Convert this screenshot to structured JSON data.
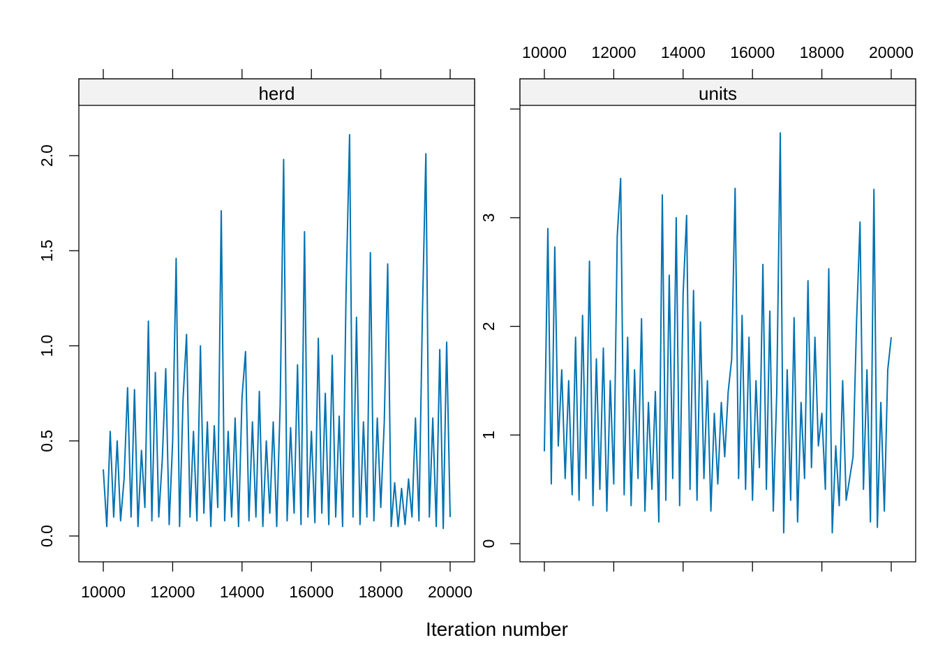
{
  "chart_data": [
    {
      "type": "line",
      "panel": "herd",
      "xlabel": "Iteration number",
      "xlim": [
        10000,
        20000
      ],
      "ylim": [
        0,
        2.25
      ],
      "x_ticks": [
        "10000",
        "12000",
        "14000",
        "16000",
        "18000",
        "20000"
      ],
      "y_ticks": [
        "0.0",
        "0.5",
        "1.0",
        "1.5",
        "2.0"
      ],
      "color": "#0072B2",
      "grid": false,
      "values": [
        0.35,
        0.05,
        0.55,
        0.1,
        0.5,
        0.08,
        0.3,
        0.78,
        0.1,
        0.77,
        0.05,
        0.45,
        0.15,
        1.13,
        0.08,
        0.86,
        0.1,
        0.4,
        0.88,
        0.06,
        0.5,
        1.46,
        0.05,
        0.72,
        1.06,
        0.1,
        0.55,
        0.08,
        1.0,
        0.12,
        0.6,
        0.05,
        0.58,
        0.15,
        1.71,
        0.08,
        0.55,
        0.1,
        0.62,
        0.05,
        0.73,
        0.97,
        0.08,
        0.6,
        0.1,
        0.76,
        0.05,
        0.5,
        0.12,
        0.6,
        0.05,
        0.7,
        1.98,
        0.08,
        0.57,
        0.12,
        0.9,
        0.06,
        1.6,
        0.1,
        0.55,
        0.07,
        1.04,
        0.12,
        0.75,
        0.06,
        0.95,
        0.1,
        0.63,
        0.05,
        1.29,
        2.11,
        0.1,
        1.15,
        0.06,
        0.6,
        0.1,
        1.49,
        0.08,
        0.62,
        0.15,
        0.6,
        1.43,
        0.05,
        0.28,
        0.05,
        0.25,
        0.06,
        0.3,
        0.1,
        0.62,
        0.08,
        1.16,
        2.01,
        0.1,
        0.62,
        0.05,
        0.98,
        0.04,
        1.02,
        0.1
      ]
    },
    {
      "type": "line",
      "panel": "units",
      "xlabel": "Iteration number",
      "xlim": [
        10000,
        20000
      ],
      "ylim": [
        0,
        4
      ],
      "x_ticks": [
        "10000",
        "12000",
        "14000",
        "16000",
        "18000",
        "20000"
      ],
      "y_ticks": [
        "0",
        "1",
        "2",
        "3"
      ],
      "color": "#0072B2",
      "grid": false,
      "values": [
        0.85,
        2.9,
        0.55,
        2.73,
        0.9,
        1.6,
        0.6,
        1.5,
        0.45,
        1.9,
        0.4,
        2.1,
        0.6,
        2.6,
        0.35,
        1.7,
        0.5,
        1.8,
        0.3,
        1.5,
        0.55,
        2.83,
        3.36,
        0.45,
        1.9,
        0.35,
        1.6,
        0.6,
        2.07,
        0.3,
        1.3,
        0.5,
        1.4,
        0.2,
        3.21,
        0.4,
        2.47,
        0.6,
        3.0,
        0.35,
        2.3,
        3.02,
        0.5,
        2.33,
        0.4,
        2.04,
        0.6,
        1.5,
        0.3,
        1.2,
        0.55,
        1.3,
        0.8,
        1.4,
        1.7,
        3.27,
        0.6,
        2.1,
        0.5,
        1.9,
        0.4,
        1.5,
        0.7,
        2.57,
        0.5,
        2.14,
        0.3,
        1.4,
        3.78,
        0.1,
        1.6,
        0.4,
        2.08,
        0.2,
        1.3,
        0.6,
        2.42,
        0.7,
        1.9,
        0.9,
        1.2,
        0.5,
        2.53,
        0.1,
        0.9,
        0.35,
        1.5,
        0.4,
        0.6,
        0.8,
        2.04,
        2.96,
        0.5,
        1.6,
        0.2,
        3.26,
        0.15,
        1.3,
        0.3,
        1.6,
        1.9
      ]
    }
  ]
}
